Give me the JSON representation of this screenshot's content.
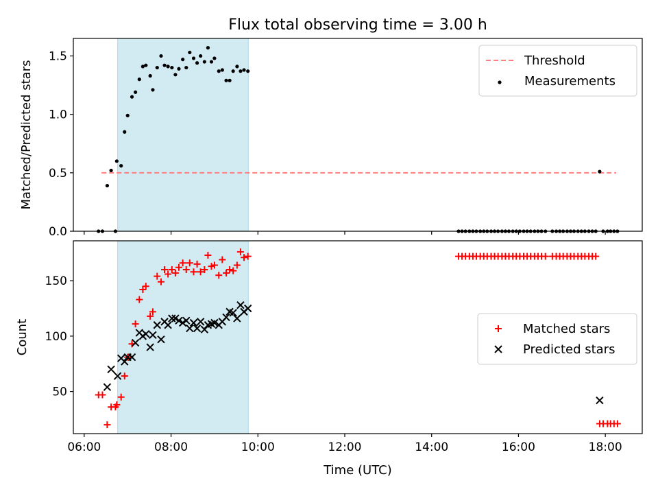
{
  "chart_data": {
    "title": "Flux total observing time = 3.00 h",
    "xlabel": "Time (UTC)",
    "x_ticks": [
      "06:00",
      "08:00",
      "10:00",
      "12:00",
      "14:00",
      "16:00",
      "18:00"
    ],
    "x_range_hours": [
      5.75,
      18.85
    ],
    "shaded_interval_hours": [
      6.77,
      9.78
    ],
    "shade_color": "#add8e6",
    "panels": [
      {
        "type": "scatter",
        "ylabel": "Matched/Predicted stars",
        "ylim": [
          0,
          1.65
        ],
        "y_ticks": [
          "0.0",
          "0.5",
          "1.0",
          "1.5"
        ],
        "y_tick_values": [
          0,
          0.5,
          1.0,
          1.5
        ],
        "legend_position": "top-right",
        "threshold": {
          "name": "Threshold",
          "value": 0.5,
          "x_range_hours": [
            6.4,
            18.25
          ],
          "color": "#ff7f7f",
          "style": "dashed"
        },
        "series": [
          {
            "name": "Measurements",
            "color": "#000000",
            "marker": "dot",
            "x": [
              6.33,
              6.42,
              6.53,
              6.62,
              6.72,
              6.75,
              6.85,
              6.93,
              7.0,
              7.1,
              7.18,
              7.27,
              7.35,
              7.42,
              7.52,
              7.58,
              7.68,
              7.77,
              7.85,
              7.93,
              8.02,
              8.1,
              8.18,
              8.27,
              8.35,
              8.43,
              8.52,
              8.6,
              8.68,
              8.77,
              8.85,
              8.93,
              9.0,
              9.1,
              9.18,
              9.27,
              9.35,
              9.43,
              9.52,
              9.6,
              9.68,
              9.77,
              14.62,
              14.7,
              14.78,
              14.87,
              14.95,
              15.03,
              15.12,
              15.2,
              15.28,
              15.37,
              15.45,
              15.53,
              15.62,
              15.7,
              15.78,
              15.87,
              15.95,
              16.03,
              16.12,
              16.2,
              16.28,
              16.37,
              16.45,
              16.53,
              16.62,
              16.78,
              16.87,
              16.95,
              17.03,
              17.12,
              17.2,
              17.28,
              17.37,
              17.45,
              17.53,
              17.62,
              17.7,
              17.78,
              17.87,
              17.95,
              18.05,
              18.12,
              18.2,
              18.28
            ],
            "y": [
              0,
              0,
              0.39,
              0.52,
              0,
              0.6,
              0.56,
              0.85,
              0.99,
              1.15,
              1.19,
              1.3,
              1.41,
              1.42,
              1.33,
              1.21,
              1.4,
              1.5,
              1.42,
              1.41,
              1.4,
              1.34,
              1.39,
              1.47,
              1.4,
              1.53,
              1.48,
              1.44,
              1.5,
              1.45,
              1.57,
              1.45,
              1.48,
              1.37,
              1.38,
              1.29,
              1.29,
              1.37,
              1.41,
              1.37,
              1.38,
              1.37,
              0,
              0,
              0,
              0,
              0,
              0,
              0,
              0,
              0,
              0,
              0,
              0,
              0,
              0,
              0,
              0,
              0,
              0,
              0,
              0,
              0,
              0,
              0,
              0,
              0,
              0,
              0,
              0,
              0,
              0,
              0,
              0,
              0,
              0,
              0,
              0,
              0,
              0,
              0.51,
              0,
              0,
              0,
              0,
              0
            ]
          }
        ]
      },
      {
        "type": "scatter",
        "ylabel": "Count",
        "ylim": [
          12,
          186
        ],
        "y_ticks": [
          "50",
          "100",
          "150"
        ],
        "y_tick_values": [
          50,
          100,
          150
        ],
        "legend_position": "center-right",
        "series": [
          {
            "name": "Matched stars",
            "color": "#ff0000",
            "marker": "plus",
            "x": [
              6.33,
              6.42,
              6.53,
              6.62,
              6.72,
              6.75,
              6.85,
              6.93,
              7.0,
              7.1,
              7.18,
              7.27,
              7.35,
              7.42,
              7.52,
              7.58,
              7.68,
              7.77,
              7.85,
              7.93,
              8.02,
              8.1,
              8.18,
              8.27,
              8.35,
              8.43,
              8.52,
              8.6,
              8.68,
              8.77,
              8.85,
              8.93,
              9.0,
              9.1,
              9.18,
              9.27,
              9.35,
              9.43,
              9.52,
              9.6,
              9.68,
              9.77,
              14.62,
              14.7,
              14.78,
              14.87,
              14.95,
              15.03,
              15.12,
              15.2,
              15.28,
              15.37,
              15.45,
              15.53,
              15.62,
              15.7,
              15.78,
              15.87,
              15.95,
              16.03,
              16.12,
              16.2,
              16.28,
              16.37,
              16.45,
              16.53,
              16.62,
              16.78,
              16.87,
              16.95,
              17.03,
              17.12,
              17.2,
              17.28,
              17.37,
              17.45,
              17.53,
              17.62,
              17.7,
              17.78,
              17.87,
              17.95,
              18.05,
              18.12,
              18.2,
              18.28
            ],
            "y": [
              47,
              47,
              20,
              36,
              36,
              38,
              45,
              64,
              81,
              93,
              111,
              133,
              142,
              145,
              118,
              122,
              154,
              149,
              160,
              156,
              160,
              157,
              162,
              166,
              160,
              166,
              158,
              165,
              158,
              160,
              173,
              163,
              164,
              155,
              169,
              157,
              160,
              159,
              164,
              176,
              171,
              172,
              172,
              172,
              172,
              172,
              172,
              172,
              172,
              172,
              172,
              172,
              172,
              172,
              172,
              172,
              172,
              172,
              172,
              172,
              172,
              172,
              172,
              172,
              172,
              172,
              172,
              172,
              172,
              172,
              172,
              172,
              172,
              172,
              172,
              172,
              172,
              172,
              172,
              172,
              21,
              21,
              21,
              21,
              21,
              21
            ]
          },
          {
            "name": "Predicted stars",
            "color": "#000000",
            "marker": "x",
            "x": [
              6.53,
              6.62,
              6.77,
              6.85,
              6.93,
              7.0,
              7.1,
              7.18,
              7.27,
              7.35,
              7.42,
              7.52,
              7.58,
              7.68,
              7.77,
              7.85,
              7.93,
              8.02,
              8.1,
              8.18,
              8.27,
              8.35,
              8.43,
              8.52,
              8.6,
              8.68,
              8.77,
              8.85,
              8.93,
              9.0,
              9.1,
              9.18,
              9.27,
              9.35,
              9.43,
              9.52,
              9.6,
              9.68,
              9.77,
              17.87
            ],
            "y": [
              54,
              70,
              64,
              80,
              77,
              81,
              81,
              94,
              103,
              100,
              102,
              90,
              101,
              110,
              97,
              113,
              110,
              116,
              116,
              114,
              112,
              114,
              107,
              112,
              107,
              113,
              106,
              110,
              111,
              112,
              110,
              113,
              117,
              122,
              121,
              116,
              128,
              122,
              125,
              42
            ]
          }
        ]
      }
    ]
  }
}
